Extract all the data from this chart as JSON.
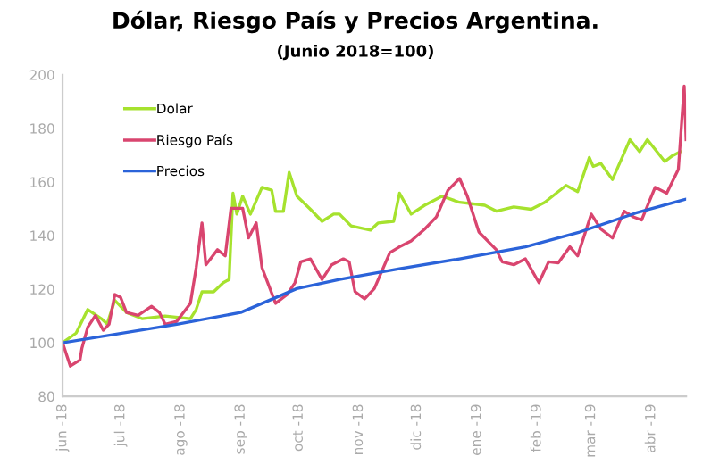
{
  "chart_data": {
    "type": "line",
    "title": "Dólar, Riesgo País y Precios Argentina.",
    "subtitle": "(Junio 2018=100)",
    "xlim": [
      "2018-06-01",
      "2019-04-19"
    ],
    "xticks": [
      {
        "value": "2018-06-01",
        "label": "jun -18"
      },
      {
        "value": "2018-07-01",
        "label": "jul -18"
      },
      {
        "value": "2018-08-01",
        "label": "ago -18"
      },
      {
        "value": "2018-09-01",
        "label": "sep -18"
      },
      {
        "value": "2018-10-01",
        "label": "oct -18"
      },
      {
        "value": "2018-11-01",
        "label": "nov -18"
      },
      {
        "value": "2018-12-01",
        "label": "dic -18"
      },
      {
        "value": "2019-01-01",
        "label": "ene -19"
      },
      {
        "value": "2019-02-01",
        "label": "feb -19"
      },
      {
        "value": "2019-03-01",
        "label": "mar -19"
      },
      {
        "value": "2019-04-01",
        "label": "abr -19"
      }
    ],
    "ylim": [
      80,
      200
    ],
    "yticks": [
      80,
      100,
      120,
      140,
      160,
      180,
      200
    ],
    "grid": false,
    "legend": "top left",
    "series": [
      {
        "name": "Dolar",
        "color": "#a6e22e",
        "x": [
          "2018-06-01",
          "2018-06-08",
          "2018-06-14",
          "2018-06-21",
          "2018-06-24",
          "2018-06-28",
          "2018-07-04",
          "2018-07-12",
          "2018-07-24",
          "2018-08-06",
          "2018-08-09",
          "2018-08-12",
          "2018-08-18",
          "2018-08-23",
          "2018-08-26",
          "2018-08-28",
          "2018-08-30",
          "2018-09-02",
          "2018-09-06",
          "2018-09-12",
          "2018-09-17",
          "2018-09-19",
          "2018-09-23",
          "2018-09-26",
          "2018-09-30",
          "2018-10-07",
          "2018-10-13",
          "2018-10-19",
          "2018-10-22",
          "2018-10-28",
          "2018-11-07",
          "2018-11-11",
          "2018-11-19",
          "2018-11-22",
          "2018-11-28",
          "2018-12-05",
          "2018-12-14",
          "2018-12-23",
          "2019-01-05",
          "2019-01-11",
          "2019-01-20",
          "2019-01-29",
          "2019-02-05",
          "2019-02-16",
          "2019-02-22",
          "2019-02-28",
          "2019-03-02",
          "2019-03-06",
          "2019-03-12",
          "2019-03-21",
          "2019-03-26",
          "2019-03-30",
          "2019-04-08",
          "2019-04-12",
          "2019-04-16"
        ],
        "values": [
          100,
          103.6,
          112.4,
          109,
          107,
          115.8,
          111.3,
          109,
          110,
          109,
          112.4,
          119,
          119,
          122.4,
          123.6,
          155.8,
          148,
          154.7,
          148,
          158,
          156.9,
          149,
          149,
          163.6,
          154.7,
          149.8,
          145.3,
          148,
          148,
          143.6,
          142,
          144.7,
          145.3,
          155.8,
          148,
          151.3,
          154.7,
          152.4,
          151.3,
          149.1,
          150.7,
          149.8,
          152.4,
          158.7,
          156.4,
          169.1,
          165.8,
          166.9,
          160.9,
          175.8,
          171.3,
          175.8,
          167.6,
          169.8,
          171.3
        ]
      },
      {
        "name": "Riesgo País",
        "color": "#d9456f",
        "x": [
          "2018-06-01",
          "2018-06-05",
          "2018-06-10",
          "2018-06-11",
          "2018-06-14",
          "2018-06-18",
          "2018-06-22",
          "2018-06-25",
          "2018-06-28",
          "2018-07-01",
          "2018-07-04",
          "2018-07-10",
          "2018-07-17",
          "2018-07-21",
          "2018-07-24",
          "2018-07-30",
          "2018-08-06",
          "2018-08-09",
          "2018-08-12",
          "2018-08-14",
          "2018-08-20",
          "2018-08-24",
          "2018-08-27",
          "2018-09-02",
          "2018-09-05",
          "2018-09-09",
          "2018-09-12",
          "2018-09-19",
          "2018-09-25",
          "2018-09-29",
          "2018-10-02",
          "2018-10-07",
          "2018-10-13",
          "2018-10-18",
          "2018-10-24",
          "2018-10-27",
          "2018-10-30",
          "2018-11-04",
          "2018-11-09",
          "2018-11-17",
          "2018-11-22",
          "2018-11-28",
          "2018-12-05",
          "2018-12-11",
          "2018-12-17",
          "2018-12-23",
          "2018-12-27",
          "2019-01-02",
          "2019-01-11",
          "2019-01-14",
          "2019-01-20",
          "2019-01-26",
          "2019-02-02",
          "2019-02-07",
          "2019-02-12",
          "2019-02-18",
          "2019-02-22",
          "2019-03-01",
          "2019-03-06",
          "2019-03-12",
          "2019-03-18",
          "2019-03-23",
          "2019-03-27",
          "2019-04-03",
          "2019-04-09",
          "2019-04-15",
          "2019-04-18",
          "2019-04-19"
        ],
        "values": [
          100,
          91.3,
          93.6,
          98,
          105.8,
          110.2,
          104.7,
          106.9,
          118,
          116.9,
          111.3,
          110.2,
          113.6,
          111.3,
          106.9,
          108,
          114.7,
          128,
          144.7,
          129.1,
          134.7,
          132.4,
          150.2,
          150.2,
          139.1,
          144.7,
          128,
          114.7,
          118,
          122.4,
          130.2,
          131.3,
          123.6,
          129.1,
          131.3,
          130.2,
          119.1,
          116.4,
          120.2,
          133.6,
          135.8,
          138,
          142.4,
          146.9,
          156.9,
          161.3,
          154.7,
          141.3,
          134.7,
          130.2,
          129.1,
          131.3,
          122.4,
          130.2,
          129.8,
          135.8,
          132.4,
          148,
          142.4,
          139.1,
          149.1,
          146.9,
          145.8,
          158,
          155.8,
          164.7,
          195.8,
          175.8
        ]
      },
      {
        "name": "Precios",
        "color": "#2b63d9",
        "x": [
          "2018-06-01",
          "2018-07-30",
          "2018-09-01",
          "2018-09-30",
          "2018-10-22",
          "2018-11-22",
          "2018-12-23",
          "2019-01-26",
          "2019-02-23",
          "2019-03-24",
          "2019-04-19"
        ],
        "values": [
          100,
          106.9,
          111.3,
          120.2,
          123.6,
          127.6,
          131.3,
          135.8,
          141.3,
          148.4,
          153.6
        ]
      }
    ]
  }
}
